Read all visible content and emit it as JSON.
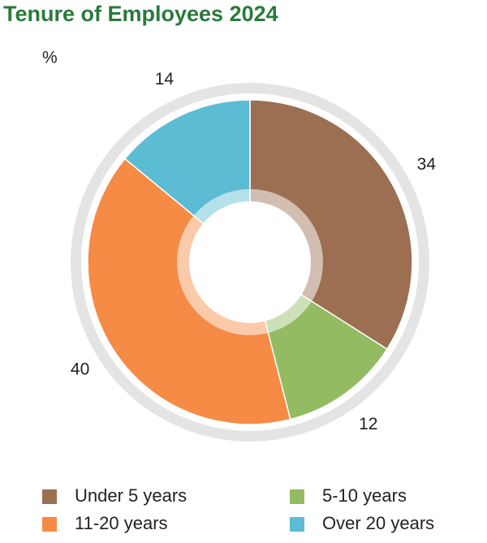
{
  "chart_data": {
    "type": "donut",
    "title": "Tenure of Employees 2024",
    "unit": "%",
    "categories": [
      "Under 5 years",
      "5-10 years",
      "11-20 years",
      "Over 20 years"
    ],
    "values": [
      34,
      12,
      40,
      14
    ],
    "colors": [
      "#9c6f52",
      "#93bb62",
      "#f58b45",
      "#5bbcd3"
    ]
  }
}
